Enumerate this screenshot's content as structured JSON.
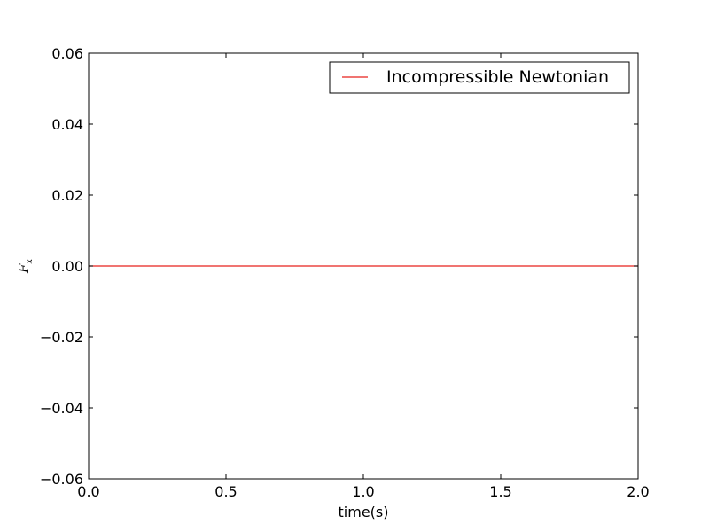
{
  "chart_data": {
    "type": "line",
    "title": "",
    "xlabel": "time(s)",
    "ylabel": "F",
    "ylabel_subscript": "x",
    "xlim": [
      0.0,
      2.0
    ],
    "ylim": [
      -0.06,
      0.06
    ],
    "x_ticks": [
      0.0,
      0.5,
      1.0,
      1.5,
      2.0
    ],
    "x_tick_labels": [
      "0.0",
      "0.5",
      "1.0",
      "1.5",
      "2.0"
    ],
    "y_ticks": [
      -0.06,
      -0.04,
      -0.02,
      0.0,
      0.02,
      0.04,
      0.06
    ],
    "y_tick_labels": [
      "−0.06",
      "−0.04",
      "−0.02",
      "0.00",
      "0.02",
      "0.04",
      "0.06"
    ],
    "grid": false,
    "legend_position": "top-right",
    "series": [
      {
        "name": "Incompressible Newtonian",
        "color": "#e8201c",
        "x": [
          0.0,
          2.0
        ],
        "y": [
          0.0,
          0.0
        ]
      }
    ]
  }
}
